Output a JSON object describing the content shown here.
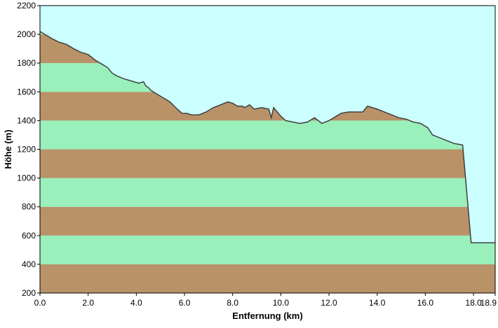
{
  "chart_data": {
    "type": "area",
    "xlabel": "Entfernung  (km)",
    "ylabel": "Höhe (m)",
    "xlim": [
      0.0,
      18.9
    ],
    "ylim": [
      200,
      2200
    ],
    "x_ticks": [
      "0.0",
      "2.0",
      "4.0",
      "6.0",
      "8.0",
      "10.0",
      "12.0",
      "14.0",
      "16.0",
      "18.0",
      "18.9"
    ],
    "x_tick_values": [
      0,
      2,
      4,
      6,
      8,
      10,
      12,
      14,
      16,
      18,
      18.9
    ],
    "y_ticks": [
      "200",
      "400",
      "600",
      "800",
      "1000",
      "1200",
      "1400",
      "1600",
      "1800",
      "2000",
      "2200"
    ],
    "y_tick_values": [
      200,
      400,
      600,
      800,
      1000,
      1200,
      1400,
      1600,
      1800,
      2000,
      2200
    ],
    "grid": false,
    "series": [
      {
        "x": [
          0.0,
          0.2,
          0.5,
          0.8,
          1.1,
          1.4,
          1.7,
          2.0,
          2.3,
          2.6,
          2.8,
          3.0,
          3.2,
          3.5,
          3.7,
          3.9,
          4.1,
          4.3,
          4.4,
          4.5,
          4.6,
          4.8,
          5.1,
          5.4,
          5.7,
          5.9,
          6.1,
          6.3,
          6.6,
          6.9,
          7.2,
          7.5,
          7.8,
          8.0,
          8.2,
          8.4,
          8.5,
          8.7,
          8.9,
          9.2,
          9.5,
          9.6,
          9.7,
          9.8,
          10.0,
          10.2,
          10.5,
          10.8,
          11.1,
          11.4,
          11.7,
          12.0,
          12.3,
          12.5,
          12.8,
          13.1,
          13.4,
          13.6,
          13.8,
          14.0,
          14.3,
          14.6,
          14.9,
          15.2,
          15.5,
          15.8,
          16.1,
          16.3,
          16.6,
          16.9,
          17.2,
          17.55,
          17.9,
          18.0,
          18.9
        ],
        "y": [
          2020,
          2000,
          1970,
          1945,
          1930,
          1900,
          1875,
          1860,
          1820,
          1790,
          1770,
          1730,
          1710,
          1690,
          1680,
          1670,
          1660,
          1670,
          1640,
          1630,
          1610,
          1590,
          1560,
          1530,
          1480,
          1450,
          1450,
          1440,
          1440,
          1460,
          1490,
          1510,
          1530,
          1520,
          1500,
          1500,
          1490,
          1510,
          1480,
          1490,
          1480,
          1420,
          1490,
          1470,
          1430,
          1400,
          1390,
          1380,
          1390,
          1420,
          1380,
          1400,
          1430,
          1450,
          1460,
          1460,
          1460,
          1500,
          1490,
          1480,
          1460,
          1440,
          1420,
          1410,
          1390,
          1380,
          1350,
          1300,
          1280,
          1260,
          1240,
          1230,
          550,
          550,
          550
        ]
      }
    ],
    "band_step": 200,
    "band_colors": [
      "#b99268",
      "#99f0bb"
    ],
    "sky_color": "#ccffff",
    "line_color": "#404040"
  }
}
